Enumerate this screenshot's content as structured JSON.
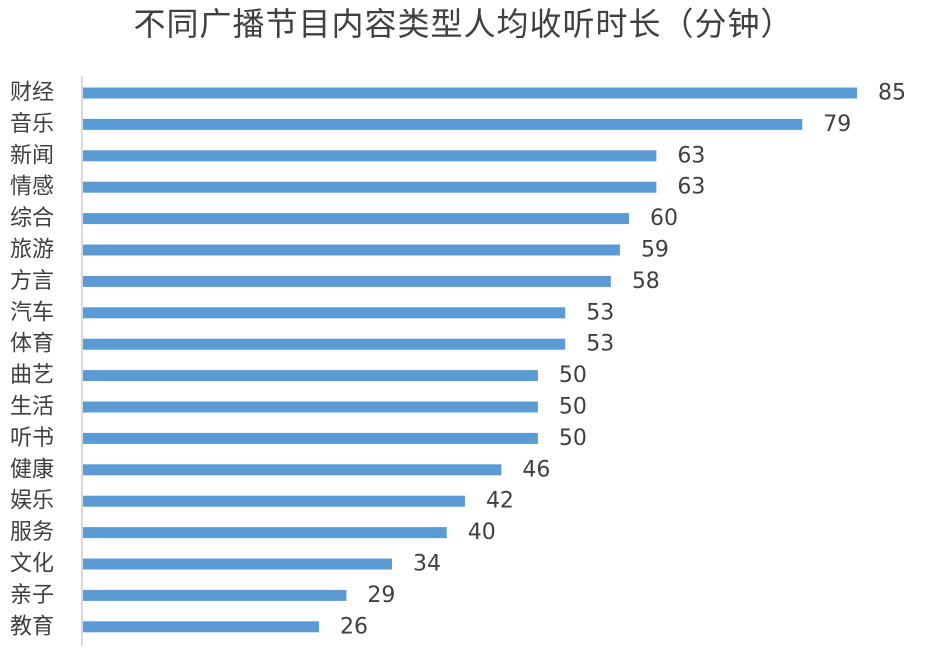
{
  "chart_data": {
    "type": "bar",
    "orientation": "horizontal",
    "title": "不同广播节目内容类型人均收听时长（分钟）",
    "categories": [
      "财经",
      "音乐",
      "新闻",
      "情感",
      "综合",
      "旅游",
      "方言",
      "汽车",
      "体育",
      "曲艺",
      "生活",
      "听书",
      "健康",
      "娱乐",
      "服务",
      "文化",
      "亲子",
      "教育"
    ],
    "values": [
      85,
      79,
      63,
      63,
      60,
      59,
      58,
      53,
      53,
      50,
      50,
      50,
      46,
      42,
      40,
      34,
      29,
      26
    ],
    "value_labels": [
      "85",
      "79",
      "63",
      "63",
      "60",
      "59",
      "58",
      "53",
      "53",
      "50",
      "50",
      "50",
      "46",
      "42",
      "40",
      "34",
      "29",
      "26"
    ],
    "xlabel": "",
    "ylabel": "",
    "xlim": [
      0,
      85
    ],
    "grid": false,
    "data_labels": true,
    "bar_color": "#5b9bd5",
    "axis_color": "#d9d9d9"
  }
}
